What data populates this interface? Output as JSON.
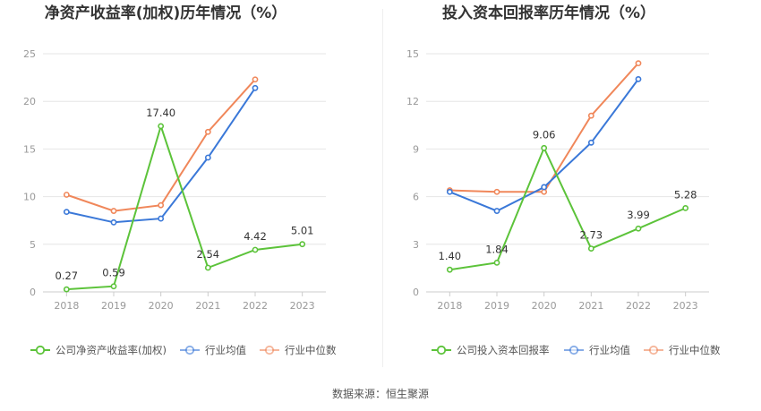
{
  "colors": {
    "company": "#5cc33a",
    "average": "#3a78d8",
    "median": "#f0875a",
    "grid": "#e6e6e6",
    "axis": "#cccccc"
  },
  "source_text": "数据来源：恒生聚源",
  "chart_data": [
    {
      "type": "line",
      "title": "净资产收益率(加权)历年情况（%）",
      "categories": [
        "2018",
        "2019",
        "2020",
        "2021",
        "2022",
        "2023"
      ],
      "ylim": [
        0,
        25
      ],
      "yticks": [
        0,
        5,
        10,
        15,
        20,
        25
      ],
      "legend_position": "bottom",
      "series": [
        {
          "name": "公司净资产收益率(加权)",
          "key": "company",
          "values": [
            0.27,
            0.59,
            17.4,
            2.54,
            4.42,
            5.01
          ],
          "labels": [
            "0.27",
            "0.59",
            "17.40",
            "2.54",
            "4.42",
            "5.01"
          ]
        },
        {
          "name": "行业均值",
          "key": "average",
          "values": [
            8.4,
            7.3,
            7.7,
            14.1,
            21.4,
            null
          ]
        },
        {
          "name": "行业中位数",
          "key": "median",
          "values": [
            10.2,
            8.5,
            9.1,
            16.8,
            22.3,
            null
          ]
        }
      ]
    },
    {
      "type": "line",
      "title": "投入资本回报率历年情况（%）",
      "categories": [
        "2018",
        "2019",
        "2020",
        "2021",
        "2022",
        "2023"
      ],
      "ylim": [
        0,
        15
      ],
      "yticks": [
        0,
        3,
        6,
        9,
        12,
        15
      ],
      "legend_position": "bottom",
      "series": [
        {
          "name": "公司投入资本回报率",
          "key": "company",
          "values": [
            1.4,
            1.84,
            9.06,
            2.73,
            3.99,
            5.28
          ],
          "labels": [
            "1.40",
            "1.84",
            "9.06",
            "2.73",
            "3.99",
            "5.28"
          ]
        },
        {
          "name": "行业均值",
          "key": "average",
          "values": [
            6.3,
            5.1,
            6.6,
            9.4,
            13.4,
            null
          ]
        },
        {
          "name": "行业中位数",
          "key": "median",
          "values": [
            6.4,
            6.3,
            6.3,
            11.1,
            14.4,
            null
          ]
        }
      ]
    }
  ]
}
